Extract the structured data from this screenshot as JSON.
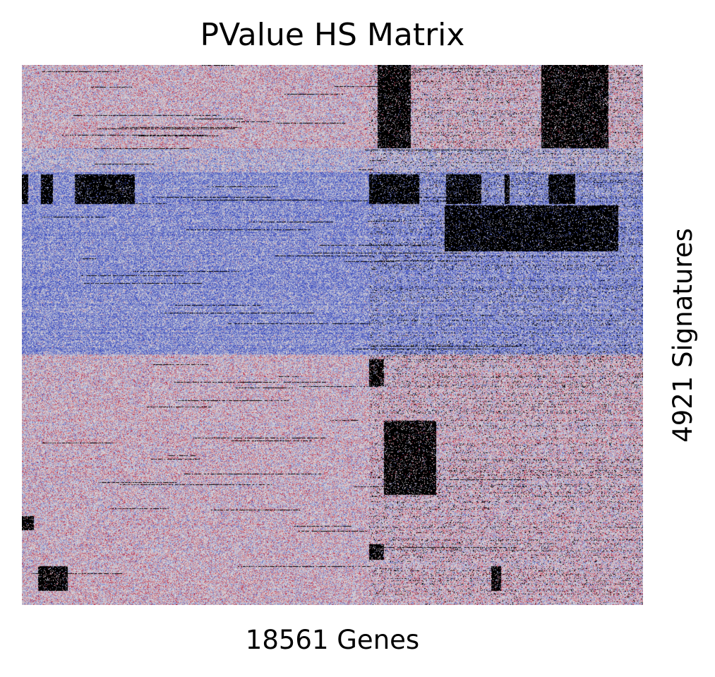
{
  "chart_data": {
    "type": "heatmap",
    "title": "PValue HS Matrix",
    "xlabel": "18561 Genes",
    "ylabel": "4921 Signatures",
    "n_columns": 18561,
    "n_rows": 4921,
    "colormap": {
      "name": "coolwarm",
      "low": "#3b4cc0",
      "mid": "#dddddd",
      "high": "#b40426",
      "missing": "#000000"
    },
    "grid": false,
    "legend": "none",
    "row_bands": [
      {
        "rows": [
          0,
          760
        ],
        "tone": "warm"
      },
      {
        "rows": [
          760,
          980
        ],
        "tone": "mixed"
      },
      {
        "rows": [
          980,
          2640
        ],
        "tone": "cool"
      },
      {
        "rows": [
          2640,
          4921
        ],
        "tone": "warm"
      }
    ],
    "missing_blocks": [
      {
        "rows": [
          1000,
          1270
        ],
        "cols": [
          0,
          200
        ]
      },
      {
        "rows": [
          1000,
          1270
        ],
        "cols": [
          580,
          920
        ]
      },
      {
        "rows": [
          1000,
          1270
        ],
        "cols": [
          1580,
          3380
        ]
      },
      {
        "rows": [
          1000,
          1270
        ],
        "cols": [
          10380,
          11880
        ]
      },
      {
        "rows": [
          1000,
          1270
        ],
        "cols": [
          12680,
          13730
        ]
      },
      {
        "rows": [
          1000,
          1270
        ],
        "cols": [
          14430,
          14580
        ]
      },
      {
        "rows": [
          1000,
          1270
        ],
        "cols": [
          15730,
          16530
        ]
      },
      {
        "rows": [
          0,
          760
        ],
        "cols": [
          10630,
          11630
        ]
      },
      {
        "rows": [
          0,
          760
        ],
        "cols": [
          15530,
          17530
        ]
      },
      {
        "rows": [
          1280,
          1700
        ],
        "cols": [
          12630,
          17830
        ]
      },
      {
        "rows": [
          2680,
          2930
        ],
        "cols": [
          10380,
          10830
        ]
      },
      {
        "rows": [
          3240,
          3920
        ],
        "cols": [
          10830,
          12380
        ]
      },
      {
        "rows": [
          4110,
          4240
        ],
        "cols": [
          0,
          350
        ]
      },
      {
        "rows": [
          4370,
          4510
        ],
        "cols": [
          10380,
          10830
        ]
      },
      {
        "rows": [
          4570,
          4790
        ],
        "cols": [
          480,
          1380
        ]
      },
      {
        "rows": [
          4570,
          4790
        ],
        "cols": [
          14030,
          14330
        ]
      }
    ]
  }
}
